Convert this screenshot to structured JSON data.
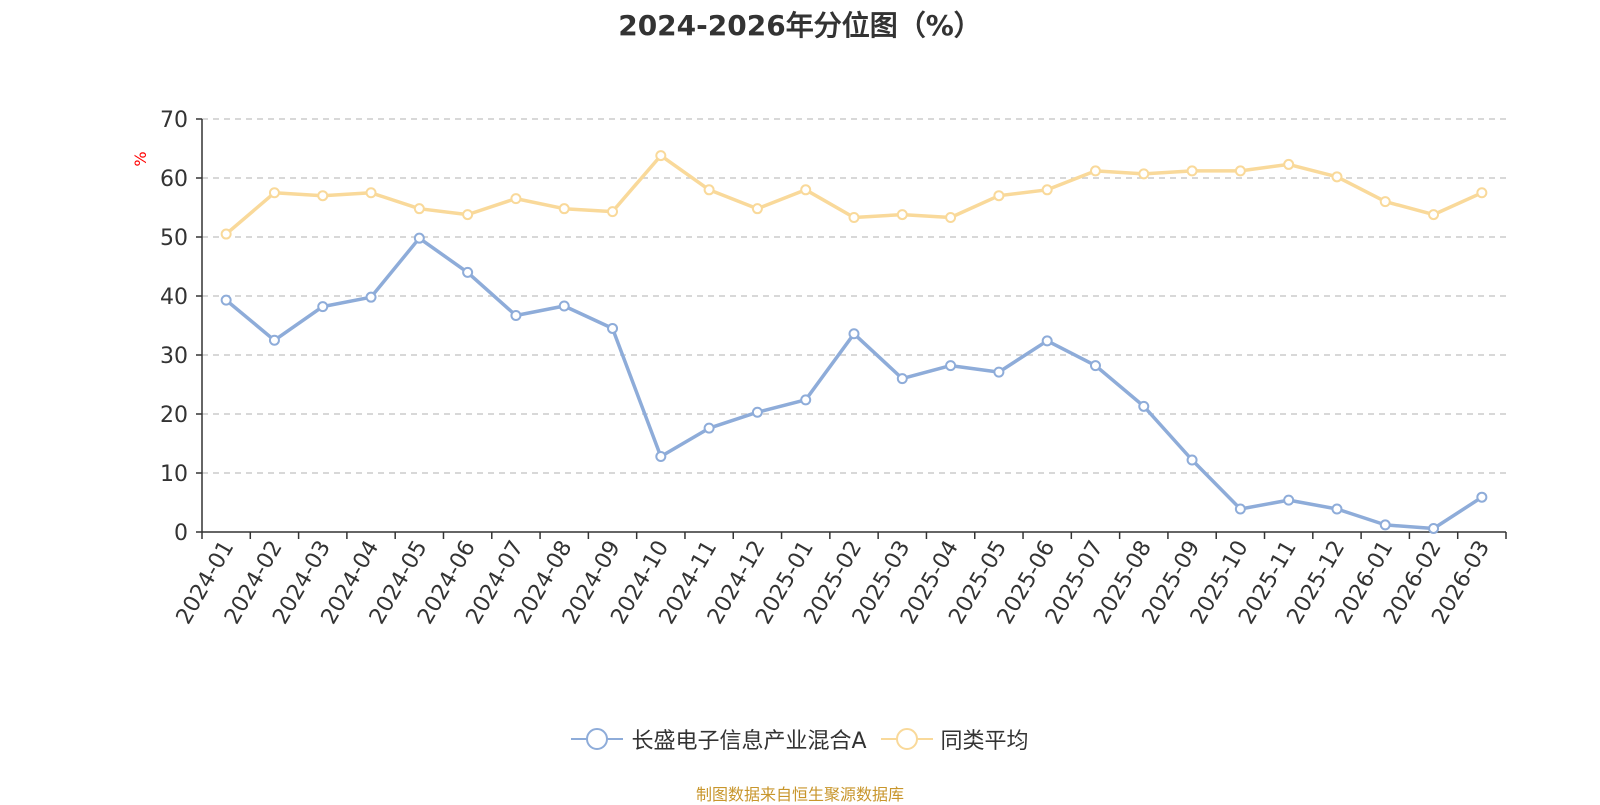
{
  "chart_data": {
    "type": "line",
    "title": "2024-2026年分位图（%）",
    "ylabel": "%",
    "xlabel": "",
    "ylim": [
      0,
      70
    ],
    "yticks": [
      0,
      10,
      20,
      30,
      40,
      50,
      60,
      70
    ],
    "grid": true,
    "legend_position": "bottom-center",
    "categories": [
      "2024-01",
      "2024-02",
      "2024-03",
      "2024-04",
      "2024-05",
      "2024-06",
      "2024-07",
      "2024-08",
      "2024-09",
      "2024-10",
      "2024-11",
      "2024-12",
      "2025-01",
      "2025-02",
      "2025-03",
      "2025-04",
      "2025-05",
      "2025-06",
      "2025-07",
      "2025-08",
      "2025-09",
      "2025-10",
      "2025-11",
      "2025-12",
      "2026-01",
      "2026-02",
      "2026-03"
    ],
    "series": [
      {
        "name": "长盛电子信息产业混合A",
        "color": "#8eacd9",
        "values": [
          39.3,
          32.5,
          38.2,
          39.8,
          49.8,
          44.0,
          36.7,
          38.3,
          34.5,
          12.8,
          17.6,
          20.3,
          22.4,
          33.6,
          26.0,
          28.2,
          27.1,
          32.4,
          28.2,
          21.3,
          12.2,
          3.9,
          5.4,
          3.9,
          1.2,
          0.6,
          5.9
        ]
      },
      {
        "name": "同类平均",
        "color": "#f9d99a",
        "values": [
          50.5,
          57.5,
          57.0,
          57.5,
          54.8,
          53.8,
          56.5,
          54.8,
          54.3,
          63.8,
          58.0,
          54.8,
          58.0,
          53.3,
          53.8,
          53.3,
          57.0,
          58.0,
          61.2,
          60.7,
          61.2,
          61.2,
          62.3,
          60.2,
          56.0,
          53.8,
          57.5
        ]
      }
    ]
  },
  "footer": {
    "source": "制图数据来自恒生聚源数据库"
  }
}
